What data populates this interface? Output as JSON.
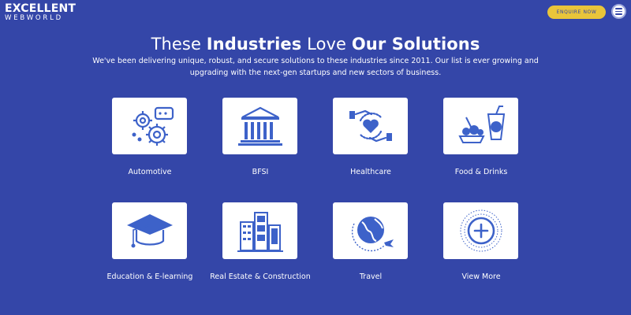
{
  "header": {
    "logo_top": "EXCELLENT",
    "logo_bottom": "WEBWORLD",
    "enquire_label": "ENQUIRE NOW",
    "menu_icon": "hamburger-menu-icon"
  },
  "colors": {
    "background": "#3446a8",
    "accent": "#e9c53a",
    "icon_blue": "#3d62c9",
    "card": "#ffffff"
  },
  "heading": {
    "part1": "These ",
    "bold1": "Industries",
    "part2": " Love ",
    "bold2": "Our Solutions",
    "subtitle": "We've been delivering unique, robust, and secure solutions to these industries since 2011. Our list is ever growing and upgrading with the next-gen startups and new sectors of business."
  },
  "industries": [
    {
      "label": "Automotive",
      "icon": "gears-icon"
    },
    {
      "label": "BFSI",
      "icon": "bank-icon"
    },
    {
      "label": "Healthcare",
      "icon": "healthcare-hands-heart-icon"
    },
    {
      "label": "Food & Drinks",
      "icon": "food-drinks-icon"
    },
    {
      "label": "Education & E-learning",
      "icon": "graduation-cap-icon"
    },
    {
      "label": "Real Estate & Construction",
      "icon": "buildings-icon"
    },
    {
      "label": "Travel",
      "icon": "globe-plane-icon"
    },
    {
      "label": "View More",
      "icon": "plus-circle-icon"
    }
  ]
}
